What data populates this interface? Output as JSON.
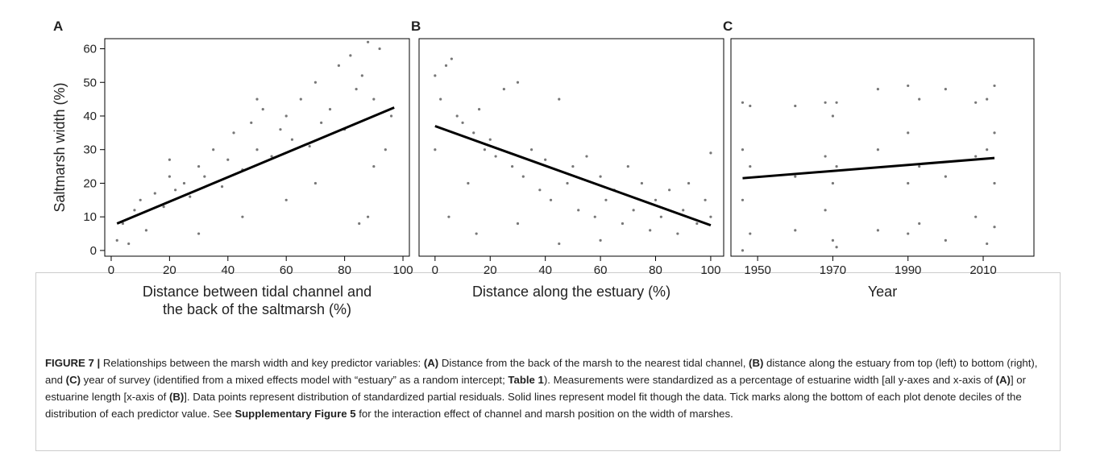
{
  "chart_data": [
    {
      "type": "scatter",
      "title": "A",
      "xlabel": [
        "Distance between tidal channel and",
        "the back of the saltmarsh (%)"
      ],
      "ylabel": "Saltmarsh width (%)",
      "xlim": [
        -2.2,
        102.2
      ],
      "ylim": [
        -1.7,
        63
      ],
      "xticks": [
        0,
        20,
        40,
        60,
        80,
        100
      ],
      "yticks": [
        0,
        10,
        20,
        30,
        40,
        50,
        60
      ],
      "series": [
        {
          "type": "scatter",
          "color": "#777777",
          "x": [
            2,
            4,
            6,
            8,
            10,
            12,
            15,
            18,
            20,
            22,
            25,
            27,
            30,
            32,
            35,
            38,
            40,
            42,
            45,
            48,
            50,
            52,
            55,
            58,
            60,
            62,
            65,
            68,
            70,
            72,
            75,
            78,
            80,
            82,
            84,
            86,
            88,
            90,
            92,
            94,
            96,
            30,
            45,
            60,
            85,
            90,
            20,
            50,
            70,
            88
          ],
          "values": [
            3,
            8,
            2,
            12,
            15,
            6,
            17,
            13,
            22,
            18,
            20,
            16,
            25,
            22,
            30,
            19,
            27,
            35,
            24,
            38,
            30,
            42,
            28,
            36,
            40,
            33,
            45,
            31,
            50,
            38,
            42,
            55,
            36,
            58,
            48,
            52,
            62,
            45,
            60,
            30,
            40,
            5,
            10,
            15,
            8,
            25,
            27,
            45,
            20,
            10
          ]
        },
        {
          "type": "line",
          "color": "#000000",
          "x": [
            2,
            97
          ],
          "values": [
            8,
            42.5
          ]
        }
      ]
    },
    {
      "type": "scatter",
      "title": "B",
      "xlabel": [
        "Distance along the estuary (%)"
      ],
      "xlim": [
        -5.8,
        104.7
      ],
      "ylim": [
        -1.7,
        63
      ],
      "xticks": [
        0,
        20,
        40,
        60,
        80,
        100
      ],
      "series": [
        {
          "type": "scatter",
          "color": "#777777",
          "x": [
            0,
            0,
            2,
            4,
            6,
            8,
            10,
            12,
            14,
            16,
            18,
            20,
            22,
            25,
            28,
            30,
            32,
            35,
            38,
            40,
            42,
            45,
            48,
            50,
            52,
            55,
            58,
            60,
            62,
            65,
            68,
            70,
            72,
            75,
            78,
            80,
            82,
            85,
            88,
            90,
            92,
            95,
            98,
            100,
            100,
            5,
            15,
            30,
            45,
            60
          ],
          "values": [
            30,
            52,
            45,
            55,
            57,
            40,
            38,
            20,
            35,
            42,
            30,
            33,
            28,
            48,
            25,
            50,
            22,
            30,
            18,
            27,
            15,
            45,
            20,
            25,
            12,
            28,
            10,
            22,
            15,
            18,
            8,
            25,
            12,
            20,
            6,
            15,
            10,
            18,
            5,
            12,
            20,
            8,
            15,
            10,
            29,
            10,
            5,
            8,
            2,
            3
          ]
        },
        {
          "type": "line",
          "color": "#000000",
          "x": [
            0,
            100
          ],
          "values": [
            37,
            7.5
          ]
        }
      ]
    },
    {
      "type": "scatter",
      "title": "C",
      "xlabel": [
        "Year"
      ],
      "xlim": [
        1942.9,
        2023.5
      ],
      "ylim": [
        -1.7,
        63
      ],
      "xticks": [
        1950,
        1970,
        1990,
        2010
      ],
      "series": [
        {
          "type": "scatter",
          "color": "#777777",
          "x": [
            1946,
            1946,
            1946,
            1946,
            1948,
            1948,
            1948,
            1960,
            1960,
            1960,
            1968,
            1968,
            1968,
            1970,
            1970,
            1970,
            1971,
            1971,
            1971,
            1982,
            1982,
            1982,
            1990,
            1990,
            1990,
            1990,
            1993,
            1993,
            1993,
            2000,
            2000,
            2000,
            2008,
            2008,
            2008,
            2011,
            2011,
            2011,
            2013,
            2013,
            2013,
            2013
          ],
          "values": [
            0,
            15,
            30,
            44,
            5,
            25,
            43,
            6,
            22,
            43,
            12,
            28,
            44,
            3,
            20,
            40,
            1,
            25,
            44,
            6,
            30,
            48,
            5,
            20,
            35,
            49,
            8,
            25,
            45,
            3,
            22,
            48,
            10,
            28,
            44,
            2,
            30,
            45,
            7,
            20,
            35,
            49
          ]
        },
        {
          "type": "line",
          "color": "#000000",
          "x": [
            1946,
            2013
          ],
          "values": [
            21.5,
            27.5
          ]
        }
      ]
    }
  ],
  "caption": [
    {
      "text": "FIGURE 7 |",
      "bold": true
    },
    {
      "text": " Relationships between the marsh width and key predictor variables: ",
      "bold": false
    },
    {
      "text": "(A)",
      "bold": true
    },
    {
      "text": " Distance from the back of the marsh to the nearest tidal channel, ",
      "bold": false
    },
    {
      "text": "(B)",
      "bold": true
    },
    {
      "text": " distance along the estuary from top (left) to bottom (right), and ",
      "bold": false
    },
    {
      "text": "(C)",
      "bold": true
    },
    {
      "text": " year of survey (identified from a mixed effects model with “estuary” as a random intercept; ",
      "bold": false
    },
    {
      "text": "Table 1",
      "bold": true
    },
    {
      "text": "). Measurements were standardized as a percentage of estuarine width [all y-axes and x-axis of ",
      "bold": false
    },
    {
      "text": "(A)",
      "bold": true
    },
    {
      "text": "] or estuarine length [x-axis of ",
      "bold": false
    },
    {
      "text": "(B)",
      "bold": true
    },
    {
      "text": "]. Data points represent distribution of standardized partial residuals. Solid lines represent model fit though the data. Tick marks along the bottom of each plot denote deciles of the distribution of each predictor value. See ",
      "bold": false
    },
    {
      "text": "Supplementary Figure 5",
      "bold": true
    },
    {
      "text": " for the interaction effect of channel and marsh position on the width of marshes.",
      "bold": false
    }
  ]
}
